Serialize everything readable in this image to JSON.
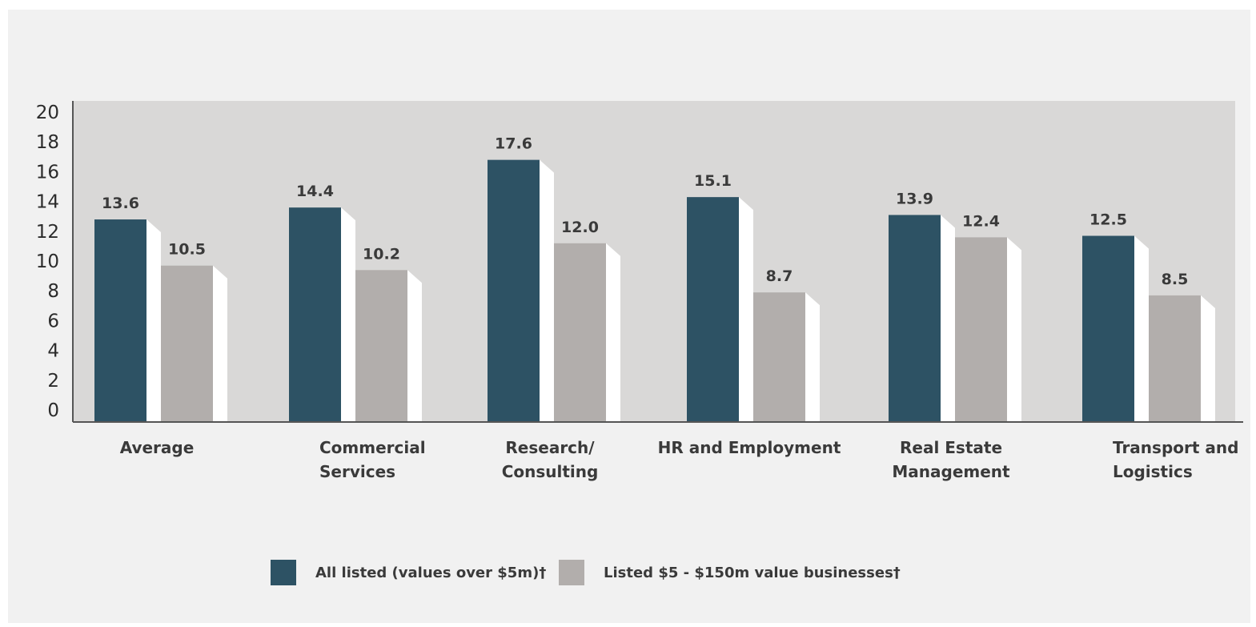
{
  "chart_data": {
    "type": "bar",
    "categories": [
      [
        "Average"
      ],
      [
        "Commercial",
        "Services"
      ],
      [
        "Research/",
        "Consulting"
      ],
      [
        "HR and Employment"
      ],
      [
        "Real Estate",
        "Management"
      ],
      [
        "Transport and",
        "Logistics"
      ]
    ],
    "series": [
      {
        "name": "All listed (values over $5m)†",
        "color": "#2d5264",
        "values": [
          13.6,
          14.4,
          17.6,
          15.1,
          13.9,
          12.5
        ]
      },
      {
        "name": "Listed $5 - $150m value businesses†",
        "color": "#b2aeac",
        "values": [
          10.5,
          10.2,
          12.0,
          8.7,
          12.4,
          8.5
        ]
      }
    ],
    "value_labels": [
      [
        "13.6",
        "14.4",
        "17.6",
        "15.1",
        "13.9",
        "12.5"
      ],
      [
        "10.5",
        "10.2",
        "12.0",
        "8.7",
        "12.4",
        "8.5"
      ]
    ],
    "yticks": [
      "0",
      "2",
      "4",
      "6",
      "8",
      "10",
      "12",
      "14",
      "16",
      "18",
      "20"
    ],
    "ylim": [
      0,
      20
    ],
    "title": "",
    "xlabel": "",
    "ylabel": "",
    "grid": false,
    "plot_background": "#d9d8d7",
    "shadow_color": "#ffffff",
    "legend_position": "bottom-center"
  }
}
